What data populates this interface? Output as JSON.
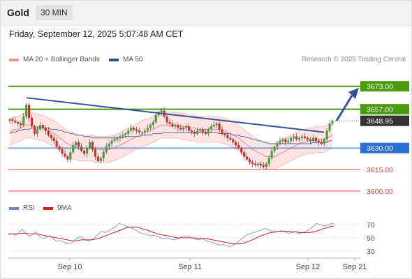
{
  "header": {
    "symbol": "Gold",
    "timeframe": "30 MIN"
  },
  "datetime": "Friday, September 12, 2025 5:07:48 AM CET",
  "legend": {
    "main": [
      {
        "label": "MA 20 + Bollinger Bands",
        "color": "#f4908e"
      },
      {
        "label": "MA 50",
        "color": "#2f4f8f"
      }
    ],
    "rsi": [
      {
        "label": "RSI",
        "color": "#6b88d8"
      },
      {
        "label": "9MA",
        "color": "#d81f1f"
      }
    ]
  },
  "credit": "Research © 2025 Trading Central",
  "chart_data": [
    {
      "type": "candlestick",
      "ylim": [
        3598,
        3686
      ],
      "x_ticks": [
        "Sep 10",
        "Sep 11",
        "Sep 12",
        "Sep 21"
      ],
      "levels": [
        {
          "label": "3673.00",
          "value": 3673.0,
          "kind": "resistance",
          "color": "#4c9a0e"
        },
        {
          "label": "3657.00",
          "value": 3657.0,
          "kind": "resistance",
          "color": "#4c9a0e"
        },
        {
          "label": "3648.95",
          "value": 3648.95,
          "kind": "last-price",
          "color": "#333333"
        },
        {
          "label": "3630.00",
          "value": 3630.0,
          "kind": "pivot",
          "color": "#2c6fd4"
        },
        {
          "label": "3615.00",
          "value": 3615.0,
          "kind": "support",
          "color": "#e0453c"
        },
        {
          "label": "3600.00",
          "value": 3600.0,
          "kind": "support",
          "color": "#e0453c"
        }
      ],
      "trendline": {
        "from": 3665,
        "to": 3641
      },
      "target_arrow": {
        "from": 3649,
        "to": 3670
      },
      "closes": [
        3650,
        3649,
        3648,
        3647,
        3646,
        3652,
        3660,
        3651,
        3645,
        3640,
        3643,
        3646,
        3644,
        3642,
        3639,
        3637,
        3635,
        3631,
        3629,
        3626,
        3624,
        3622,
        3627,
        3632,
        3634,
        3631,
        3628,
        3626,
        3630,
        3634,
        3629,
        3624,
        3621,
        3623,
        3627,
        3631,
        3633,
        3635,
        3636,
        3637,
        3638,
        3639,
        3640,
        3642,
        3644,
        3643,
        3642,
        3641,
        3641,
        3642,
        3644,
        3646,
        3648,
        3653,
        3655,
        3656,
        3652,
        3648,
        3647,
        3645,
        3646,
        3644,
        3643,
        3644,
        3645,
        3642,
        3641,
        3640,
        3642,
        3643,
        3641,
        3640,
        3643,
        3645,
        3646,
        3647,
        3643,
        3640,
        3639,
        3637,
        3636,
        3634,
        3632,
        3630,
        3627,
        3624,
        3622,
        3620,
        3619,
        3618,
        3619,
        3618,
        3617,
        3619,
        3623,
        3628,
        3631,
        3633,
        3635,
        3636,
        3634,
        3635,
        3637,
        3638,
        3636,
        3637,
        3638,
        3637,
        3636,
        3635,
        3637,
        3635,
        3634,
        3633,
        3636,
        3642,
        3647,
        3649
      ],
      "ma20": [
        3641,
        3642,
        3643,
        3643,
        3644,
        3645,
        3646,
        3646,
        3646,
        3645,
        3645,
        3644,
        3644,
        3643,
        3642,
        3641,
        3640,
        3639,
        3637,
        3636,
        3634,
        3633,
        3632,
        3631,
        3631,
        3630,
        3630,
        3630,
        3630,
        3630,
        3630,
        3629,
        3629,
        3629,
        3629,
        3629,
        3629,
        3630,
        3630,
        3631,
        3632,
        3633,
        3634,
        3635,
        3636,
        3637,
        3638,
        3639,
        3640,
        3641,
        3641,
        3642,
        3643,
        3644,
        3645,
        3646,
        3646,
        3646,
        3646,
        3646,
        3646,
        3646,
        3645,
        3645,
        3645,
        3644,
        3644,
        3644,
        3643,
        3643,
        3643,
        3643,
        3643,
        3643,
        3643,
        3643,
        3643,
        3642,
        3642,
        3641,
        3640,
        3639,
        3638,
        3637,
        3635,
        3634,
        3632,
        3631,
        3629,
        3628,
        3627,
        3626,
        3625,
        3624,
        3624,
        3624,
        3624,
        3625,
        3626,
        3627,
        3628,
        3629,
        3630,
        3631,
        3632,
        3633,
        3634,
        3634,
        3635,
        3635,
        3635,
        3636,
        3636,
        3636,
        3636,
        3637,
        3638,
        3639
      ],
      "ma50": [
        3640,
        3641,
        3641,
        3642,
        3642,
        3643,
        3643,
        3643,
        3644,
        3644,
        3644,
        3644,
        3644,
        3644,
        3644,
        3643,
        3643,
        3643,
        3642,
        3642,
        3641,
        3641,
        3640,
        3640,
        3639,
        3639,
        3639,
        3638,
        3638,
        3638,
        3637,
        3637,
        3637,
        3637,
        3637,
        3637,
        3637,
        3637,
        3637,
        3637,
        3637,
        3637,
        3638,
        3638,
        3638,
        3638,
        3638,
        3638,
        3639,
        3639,
        3639,
        3639,
        3640,
        3640,
        3640,
        3640,
        3641,
        3641,
        3641,
        3641,
        3641,
        3641,
        3641,
        3641,
        3641,
        3641,
        3641,
        3641,
        3641,
        3641,
        3641,
        3641,
        3641,
        3641,
        3641,
        3641,
        3640,
        3640,
        3640,
        3640,
        3640,
        3639,
        3639,
        3639,
        3638,
        3638,
        3637,
        3637,
        3636,
        3636,
        3635,
        3635,
        3634,
        3634,
        3633,
        3633,
        3633,
        3633,
        3633,
        3633,
        3633,
        3633,
        3633,
        3633,
        3633,
        3633,
        3633,
        3633,
        3633,
        3633,
        3634,
        3634,
        3634,
        3634,
        3634,
        3634,
        3635,
        3635
      ],
      "band_width": 9
    },
    {
      "type": "line",
      "title": "RSI",
      "ylim": [
        25,
        75
      ],
      "y_ticks": [
        70,
        50,
        30
      ],
      "series": [
        {
          "name": "RSI",
          "values": [
            55,
            56,
            54,
            58,
            63,
            57,
            52,
            55,
            59,
            52,
            49,
            51,
            53,
            48,
            45,
            46,
            44,
            41,
            42,
            46,
            50,
            52,
            48,
            45,
            47,
            51,
            56,
            60,
            58,
            61,
            64,
            67,
            72,
            70,
            68,
            66,
            64,
            61,
            58,
            56,
            55,
            53,
            54,
            52,
            50,
            49,
            50,
            48,
            47,
            49,
            51,
            53,
            52,
            50,
            48,
            47,
            49,
            46,
            44,
            43,
            41,
            39,
            40,
            38,
            37,
            39,
            42,
            47,
            51,
            55,
            57,
            58,
            60,
            62,
            64,
            63,
            60,
            58,
            60,
            61,
            59,
            57,
            58,
            59,
            56,
            58,
            60,
            63,
            67,
            72,
            70,
            68,
            69,
            71,
            72
          ]
        },
        {
          "name": "9MA",
          "values": [
            56,
            56,
            56,
            56,
            57,
            57,
            56,
            56,
            56,
            55,
            54,
            53,
            52,
            51,
            50,
            49,
            48,
            47,
            46,
            45,
            46,
            47,
            47,
            47,
            47,
            48,
            49,
            51,
            53,
            55,
            57,
            59,
            61,
            63,
            65,
            66,
            66,
            66,
            65,
            63,
            62,
            60,
            58,
            56,
            55,
            54,
            53,
            52,
            51,
            50,
            50,
            50,
            50,
            50,
            50,
            49,
            49,
            49,
            48,
            47,
            46,
            45,
            44,
            43,
            42,
            41,
            41,
            41,
            42,
            44,
            46,
            48,
            51,
            53,
            55,
            57,
            58,
            59,
            60,
            60,
            60,
            60,
            59,
            59,
            58,
            58,
            58,
            58,
            59,
            60,
            62,
            64,
            65,
            67,
            68
          ]
        }
      ]
    }
  ]
}
